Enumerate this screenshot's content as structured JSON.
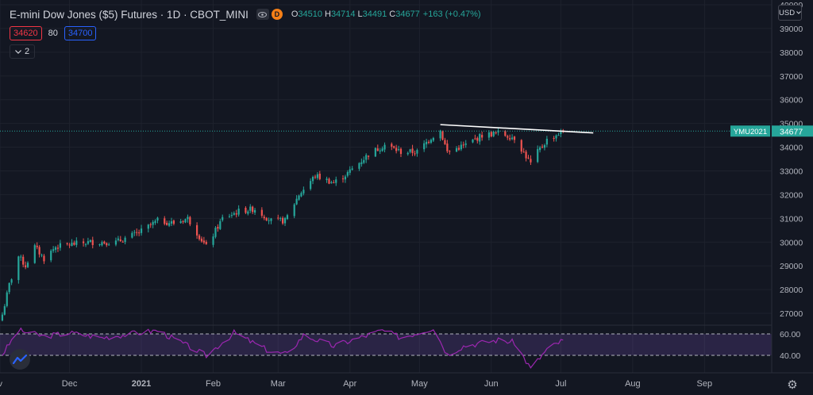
{
  "header": {
    "title": "E-mini Dow Jones ($5) Futures · 1D · CBOT_MINI",
    "interval_badge": "D",
    "ohlc": [
      {
        "label": "O",
        "value": "34510"
      },
      {
        "label": "H",
        "value": "34714"
      },
      {
        "label": "L",
        "value": "34491"
      },
      {
        "label": "C",
        "value": "34677"
      }
    ],
    "change": "+163 (+0.47%)"
  },
  "order_panel": {
    "sell_price": "34620",
    "spread": "80",
    "buy_price": "34700"
  },
  "collapse": {
    "count": "2"
  },
  "price_scale": {
    "currency": "USD"
  },
  "colors": {
    "background": "#131722",
    "up": "#26a69a",
    "down": "#ef5350",
    "rsi": "#9c27b0",
    "trendline": "#ffffff"
  },
  "chart_data": [
    {
      "type": "candlestick",
      "symbol": "YMU2021",
      "last_price": "34677",
      "x_ticks": [
        "Dec",
        "2021",
        "Feb",
        "Mar",
        "Apr",
        "May",
        "Jun",
        "Jul",
        "Aug",
        "Sep"
      ],
      "y_ticks": [
        "27000",
        "28000",
        "29000",
        "30000",
        "31000",
        "32000",
        "33000",
        "34000",
        "35000",
        "36000",
        "37000",
        "38000",
        "39000",
        "40000"
      ],
      "ylim": [
        26500,
        40200
      ],
      "x_range": [
        "2020-11-01",
        "2021-09-30"
      ],
      "close_path": [
        [
          "2020-11-02",
          26950
        ],
        [
          "2020-11-05",
          28200
        ],
        [
          "2020-11-09",
          29400
        ],
        [
          "2020-11-12",
          29000
        ],
        [
          "2020-11-16",
          29800
        ],
        [
          "2020-11-20",
          29300
        ],
        [
          "2020-11-25",
          29800
        ],
        [
          "2020-12-01",
          29900
        ],
        [
          "2020-12-10",
          30000
        ],
        [
          "2020-12-21",
          30000
        ],
        [
          "2020-12-31",
          30400
        ],
        [
          "2021-01-08",
          30900
        ],
        [
          "2021-01-15",
          30800
        ],
        [
          "2021-01-21",
          31000
        ],
        [
          "2021-01-29",
          29800
        ],
        [
          "2021-02-05",
          31000
        ],
        [
          "2021-02-12",
          31300
        ],
        [
          "2021-02-19",
          31400
        ],
        [
          "2021-02-26",
          30900
        ],
        [
          "2021-03-04",
          30900
        ],
        [
          "2021-03-10",
          32000
        ],
        [
          "2021-03-17",
          32800
        ],
        [
          "2021-03-25",
          32500
        ],
        [
          "2021-03-31",
          32900
        ],
        [
          "2021-04-09",
          33700
        ],
        [
          "2021-04-16",
          34100
        ],
        [
          "2021-04-23",
          33800
        ],
        [
          "2021-04-30",
          33800
        ],
        [
          "2021-05-06",
          34400
        ],
        [
          "2021-05-10",
          34700
        ],
        [
          "2021-05-13",
          33800
        ],
        [
          "2021-05-21",
          34100
        ],
        [
          "2021-05-28",
          34500
        ],
        [
          "2021-06-04",
          34600
        ],
        [
          "2021-06-11",
          34400
        ],
        [
          "2021-06-18",
          33300
        ],
        [
          "2021-06-21",
          33800
        ],
        [
          "2021-06-25",
          34300
        ],
        [
          "2021-07-02",
          34677
        ]
      ],
      "trendline": {
        "start": [
          "2021-05-10",
          34950
        ],
        "end": [
          "2021-07-15",
          34600
        ]
      },
      "rsi": {
        "levels": [
          "60.00",
          "40.00"
        ],
        "ylim": [
          30,
          75
        ],
        "path": [
          [
            "2020-11-02",
            48
          ],
          [
            "2020-11-09",
            68
          ],
          [
            "2020-11-20",
            63
          ],
          [
            "2020-12-01",
            66
          ],
          [
            "2020-12-15",
            62
          ],
          [
            "2021-01-08",
            68
          ],
          [
            "2021-01-29",
            47
          ],
          [
            "2021-02-10",
            66
          ],
          [
            "2021-02-26",
            50
          ],
          [
            "2021-03-05",
            48
          ],
          [
            "2021-03-12",
            64
          ],
          [
            "2021-03-25",
            55
          ],
          [
            "2021-04-15",
            68
          ],
          [
            "2021-04-23",
            62
          ],
          [
            "2021-05-07",
            70
          ],
          [
            "2021-05-13",
            48
          ],
          [
            "2021-05-20",
            55
          ],
          [
            "2021-06-04",
            60
          ],
          [
            "2021-06-11",
            58
          ],
          [
            "2021-06-18",
            36
          ],
          [
            "2021-06-25",
            52
          ],
          [
            "2021-07-02",
            60
          ]
        ]
      }
    }
  ]
}
